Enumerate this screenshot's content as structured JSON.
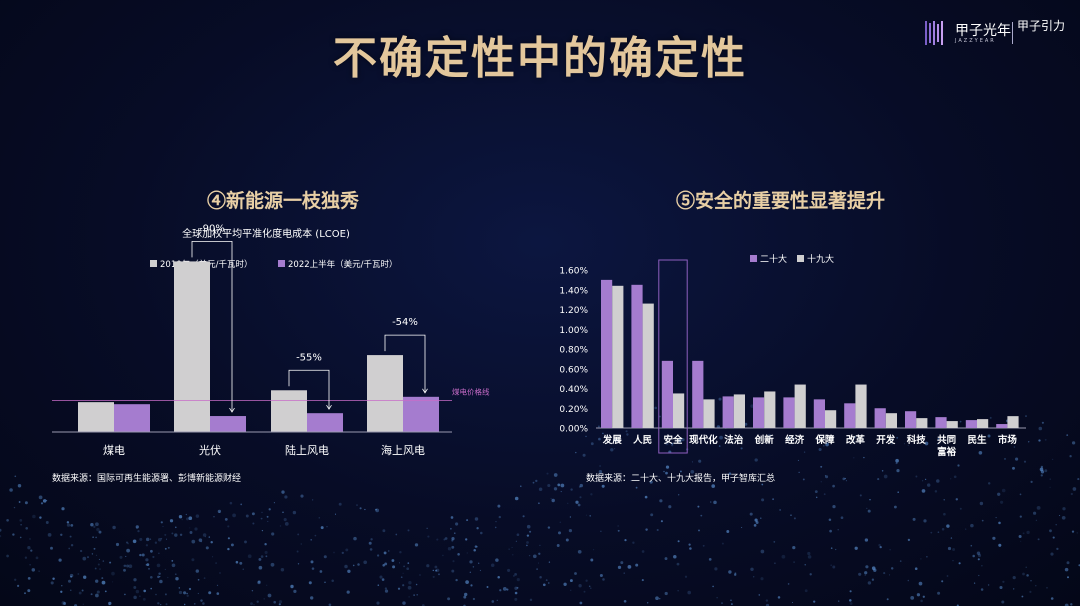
{
  "slide_title": "不确定性中的确定性",
  "logo": {
    "name": "甲子光年",
    "sub": "JAZZYEAR",
    "tag": "甲子引力"
  },
  "colors": {
    "gray": "#d0cfd0",
    "purple": "#a57ccf",
    "title_gold": "#e3c79c",
    "line_pink": "#c86cc8"
  },
  "left": {
    "section_title": "④新能源一枝独秀",
    "source": "数据来源：国际可再生能源署、彭博新能源财经"
  },
  "right": {
    "section_title": "⑤安全的重要性显著提升",
    "source": "数据来源：二十大、十九大报告，甲子智库汇总"
  },
  "chart_data": [
    {
      "type": "bar",
      "title": "全球加权平均平准化度电成本 (LCOE)",
      "categories": [
        "煤电",
        "光伏",
        "陆上风电",
        "海上风电"
      ],
      "series": [
        {
          "name": "2010年（美元/千瓦时）",
          "color": "#d0cfd0",
          "values": [
            0.073,
            0.417,
            0.102,
            0.188
          ]
        },
        {
          "name": "2022上半年（美元/千瓦时）",
          "color": "#a57ccf",
          "values": [
            0.068,
            0.039,
            0.046,
            0.086
          ]
        }
      ],
      "annotations": [
        {
          "category": "光伏",
          "text": "-90%"
        },
        {
          "category": "陆上风电",
          "text": "-55%"
        },
        {
          "category": "海上风电",
          "text": "-54%"
        }
      ],
      "reference_line": {
        "label": "煤电价格线",
        "value": 0.077
      },
      "ylim": [
        0,
        0.44
      ],
      "legend": "top",
      "grid": false
    },
    {
      "type": "bar",
      "categories": [
        "发展",
        "人民",
        "安全",
        "现代化",
        "法治",
        "创新",
        "经济",
        "保障",
        "改革",
        "开发",
        "科技",
        "共同富裕",
        "民生",
        "市场"
      ],
      "series": [
        {
          "name": "二十大",
          "color": "#a57ccf",
          "values": [
            1.5,
            1.45,
            0.68,
            0.68,
            0.32,
            0.31,
            0.31,
            0.29,
            0.25,
            0.2,
            0.17,
            0.11,
            0.08,
            0.04
          ]
        },
        {
          "name": "十九大",
          "color": "#d0cfd0",
          "values": [
            1.44,
            1.26,
            0.35,
            0.29,
            0.34,
            0.37,
            0.44,
            0.18,
            0.44,
            0.15,
            0.1,
            0.07,
            0.09,
            0.12
          ]
        }
      ],
      "highlight_category": "安全",
      "yticks": [
        "0.00%",
        "0.20%",
        "0.40%",
        "0.60%",
        "0.80%",
        "1.00%",
        "1.20%",
        "1.40%",
        "1.60%"
      ],
      "ylim": [
        0,
        1.6
      ],
      "legend": "top",
      "grid": false
    }
  ]
}
